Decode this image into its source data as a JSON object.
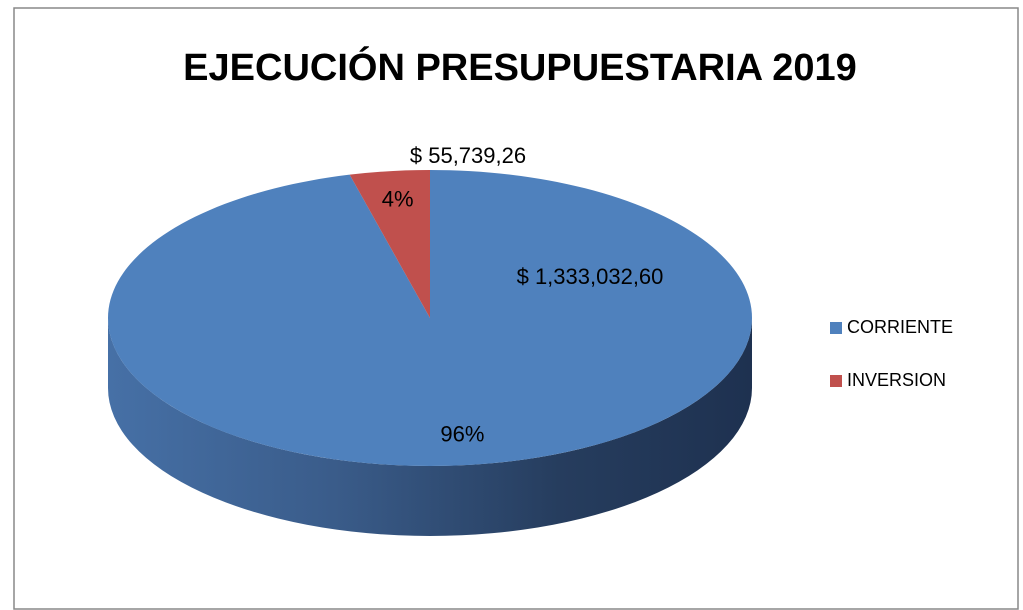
{
  "chart_data": {
    "type": "pie3d",
    "title": "EJECUCIÓN PRESUPUESTARIA 2019",
    "categories": [
      "CORRIENTE",
      "INVERSION"
    ],
    "values": [
      1333032.6,
      55739.26
    ],
    "value_labels": [
      "$ 1,333,032,60",
      "$ 55,739,26"
    ],
    "percents": [
      96,
      4
    ],
    "percent_labels": [
      "96%",
      "4%"
    ],
    "colors": [
      "#4f81bd",
      "#c0504d"
    ],
    "legend": "right"
  }
}
